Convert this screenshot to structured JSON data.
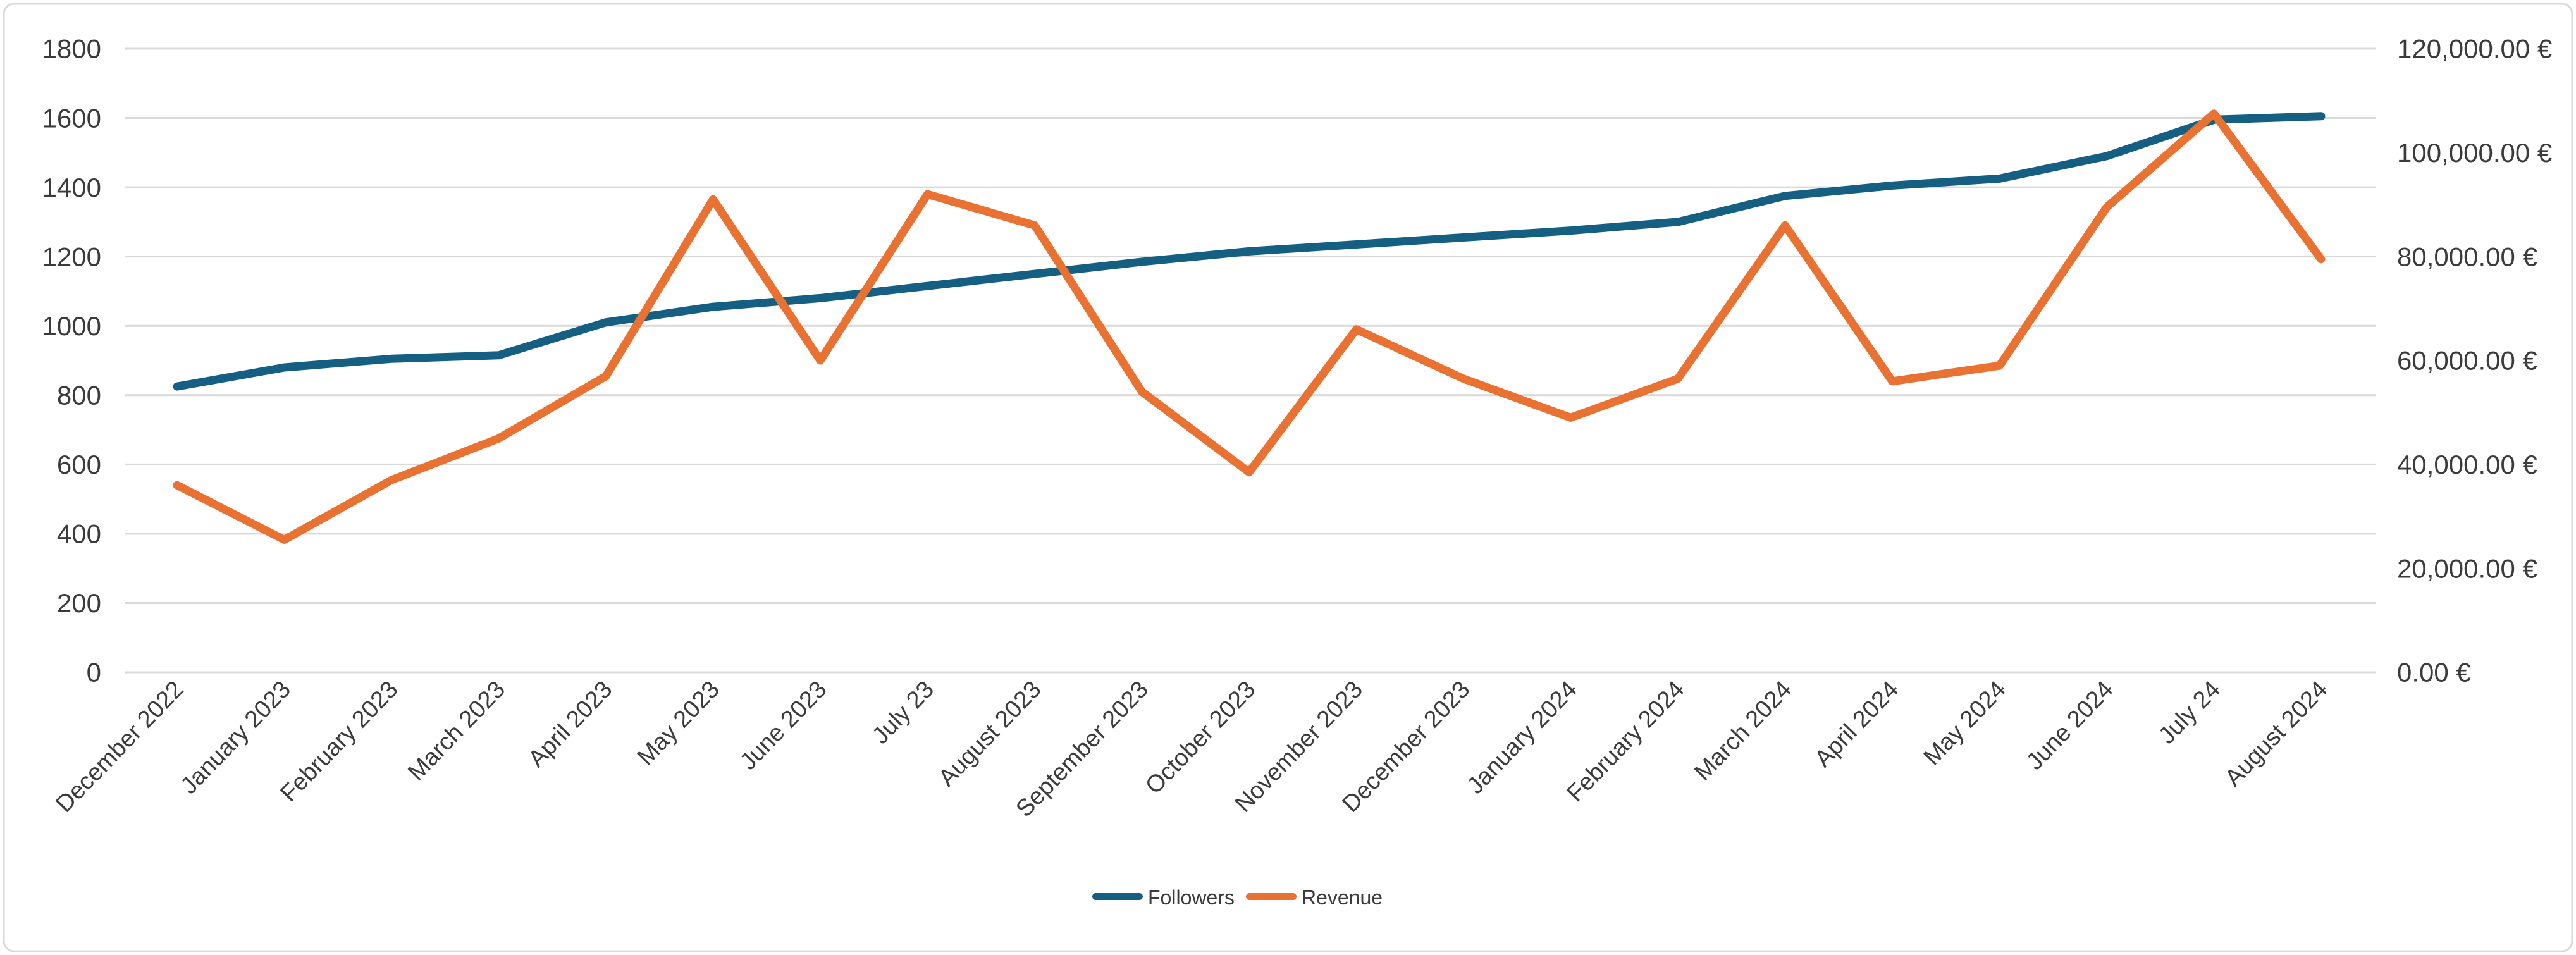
{
  "chart_data": {
    "type": "line",
    "title": "",
    "categories": [
      "December 2022",
      "January 2023",
      "February 2023",
      "March 2023",
      "April 2023",
      "May 2023",
      "June 2023",
      "July 23",
      "August 2023",
      "September 2023",
      "October 2023",
      "November 2023",
      "December 2023",
      "January 2024",
      "February 2024",
      "March 2024",
      "April 2024",
      "May 2024",
      "June 2024",
      "July 24",
      "August 2024"
    ],
    "series": [
      {
        "name": "Followers",
        "axis": "left",
        "color": "#156082",
        "values": [
          825,
          880,
          905,
          915,
          1010,
          1055,
          1080,
          1115,
          1150,
          1185,
          1215,
          1235,
          1255,
          1275,
          1300,
          1375,
          1405,
          1425,
          1490,
          1595,
          1605
        ]
      },
      {
        "name": "Revenue",
        "axis": "right",
        "color": "#E97132",
        "values": [
          36000,
          25500,
          37000,
          45000,
          57000,
          91000,
          60000,
          92000,
          86000,
          54000,
          38500,
          66000,
          56500,
          49000,
          56500,
          86000,
          56000,
          59000,
          89500,
          107500,
          79500
        ]
      }
    ],
    "left_axis": {
      "min": 0,
      "max": 1800,
      "step": 200
    },
    "right_axis": {
      "min": 0,
      "max": 120000,
      "step": 20000,
      "decimals": 2,
      "suffix": " €",
      "thousands_separator": ",",
      "decimal_separator": "."
    },
    "grid": true,
    "gridline_color": "#D9D9D9",
    "axis_text_color": "#3b3b3b",
    "background_color": "#ffffff",
    "border_color": "#D9D9D9",
    "legend_position": "bottom",
    "x_label_rotation_deg": -46
  },
  "legend": {
    "followers_label": "Followers",
    "revenue_label": "Revenue"
  }
}
